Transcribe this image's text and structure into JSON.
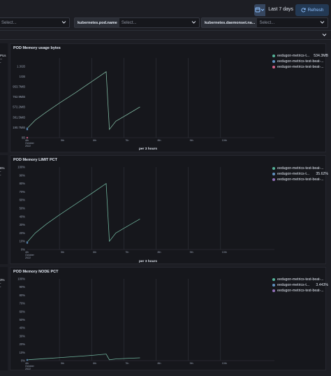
{
  "header": {
    "date_range_label": "Last 7 days",
    "refresh_label": "Refresh"
  },
  "filters": [
    {
      "label": "",
      "placeholder": "Select..."
    },
    {
      "label": "kubernetes.pod.name",
      "placeholder": "Select..."
    },
    {
      "label": "kubernetes.daemonset.na...",
      "placeholder": "Select..."
    }
  ],
  "left_panel_texts": {
    "p1": [
      "PUs",
      "--",
      "-"
    ],
    "p2": [
      "6%",
      "-",
      "-"
    ],
    "p3": [
      "3%",
      "-",
      "-"
    ]
  },
  "colors": {
    "series_teal": "#54b399",
    "series_blue": "#6092c0",
    "series_pink": "#d36086",
    "series_purple": "#9170b8",
    "accent": "#8ec1ff"
  },
  "chart_data": [
    {
      "type": "line",
      "title": "POD Memory usage bytes",
      "xlabel": "per 3 hours",
      "x_ticks": [
        "4th\nOctober\n2022",
        "5th",
        "6th",
        "7th",
        "8th",
        "9th",
        "10th"
      ],
      "y_ticks": [
        "0B",
        "190.7MiB",
        "381.5MiB",
        "572.2MiB",
        "762.9MiB",
        "953.7MiB",
        "1GB",
        "1.3GB"
      ],
      "ylim": [
        0,
        1.45
      ],
      "y_unit": "GB",
      "legend": [
        {
          "name": "eedugon-metrics-t...",
          "value": "534.3MB",
          "color": "#54b399"
        },
        {
          "name": "eedugon-metrics-test-beat-...",
          "value": "",
          "color": "#6092c0"
        },
        {
          "name": "eedugon-metrics-test-beat-...",
          "value": "",
          "color": "#d36086"
        }
      ],
      "series": [
        {
          "name": "eedugon-metrics-t...",
          "x": [
            4.0,
            4.25,
            4.6,
            5.0,
            5.5,
            6.0,
            6.45,
            6.55,
            6.75,
            7.1,
            7.5
          ],
          "values": [
            0.17,
            0.32,
            0.47,
            0.63,
            0.82,
            1.02,
            1.2,
            0.15,
            0.3,
            0.42,
            0.56
          ]
        },
        {
          "name": "eedugon-metrics-test-beat-...",
          "x": [
            4.0
          ],
          "values": [
            0.15
          ]
        },
        {
          "name": "eedugon-metrics-test-beat-...",
          "x": [
            4.0
          ],
          "values": [
            0.0
          ]
        }
      ]
    },
    {
      "type": "line",
      "title": "POD Memory LIMIT PCT",
      "xlabel": "per 3 hours",
      "x_ticks": [
        "4th\nOctober\n2022",
        "5th",
        "6th",
        "7th",
        "8th",
        "9th",
        "10th"
      ],
      "y_ticks": [
        "0%",
        "10%",
        "20%",
        "30%",
        "40%",
        "50%",
        "60%",
        "70%",
        "80%",
        "90%",
        "100%"
      ],
      "ylim": [
        0,
        100
      ],
      "legend": [
        {
          "name": "eedugon-metrics-test-beat-...",
          "value": "",
          "color": "#54b399"
        },
        {
          "name": "eedugon-metrics-t...",
          "value": "35.62%",
          "color": "#6092c0"
        },
        {
          "name": "eedugon-metrics-test-beat-...",
          "value": "",
          "color": "#9170b8"
        }
      ],
      "series": [
        {
          "name": "eedugon-metrics-t...",
          "x": [
            4.0,
            4.25,
            4.6,
            5.0,
            5.5,
            6.0,
            6.45,
            6.55,
            6.75,
            7.1,
            7.5
          ],
          "values": [
            9,
            20,
            31,
            42,
            55,
            68,
            80,
            10,
            20,
            28,
            37
          ]
        },
        {
          "name": "eedugon-metrics-test-beat-...",
          "x": [
            4.0
          ],
          "values": [
            8
          ]
        }
      ]
    },
    {
      "type": "line",
      "title": "POD Memory NODE PCT",
      "xlabel": "per 3 hours",
      "x_ticks": [
        "4th\nOctober\n2022",
        "5th",
        "6th",
        "7th",
        "8th",
        "9th",
        "10th"
      ],
      "y_ticks": [
        "0%",
        "10%",
        "20%",
        "30%",
        "40%",
        "50%",
        "60%",
        "70%",
        "80%",
        "90%",
        "100%"
      ],
      "ylim": [
        0,
        100
      ],
      "legend": [
        {
          "name": "eedugon-metrics-test-beat-...",
          "value": "",
          "color": "#54b399"
        },
        {
          "name": "eedugon-metrics-t...",
          "value": "3.443%",
          "color": "#6092c0"
        },
        {
          "name": "eedugon-metrics-test-beat-...",
          "value": "",
          "color": "#9170b8"
        }
      ],
      "series": [
        {
          "name": "eedugon-metrics-t...",
          "x": [
            4.0,
            4.5,
            5.0,
            5.5,
            6.0,
            6.45,
            6.55,
            6.75,
            7.1,
            7.5
          ],
          "values": [
            1,
            2.3,
            3.6,
            5,
            6.4,
            8,
            1,
            2,
            2.8,
            3.4
          ]
        },
        {
          "name": "eedugon-metrics-test-beat-...",
          "x": [
            4.0
          ],
          "values": [
            0.8
          ]
        }
      ]
    }
  ]
}
